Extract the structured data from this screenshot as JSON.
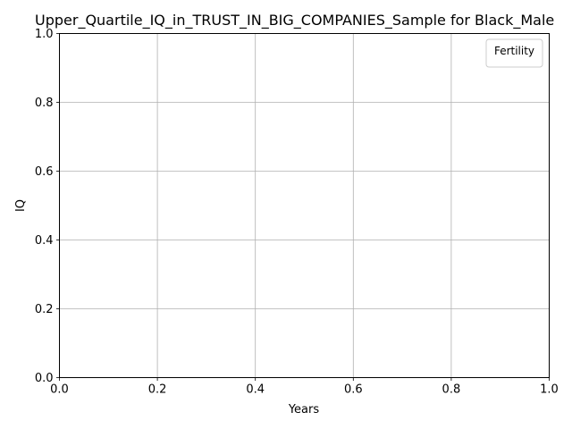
{
  "chart_data": {
    "type": "line",
    "title": "Upper_Quartile_IQ_in_TRUST_IN_BIG_COMPANIES_Sample for Black_Male",
    "xlabel": "Years",
    "ylabel": "IQ",
    "xlim": [
      0.0,
      1.0
    ],
    "ylim": [
      0.0,
      1.0
    ],
    "x_ticks": [
      0.0,
      0.2,
      0.4,
      0.6,
      0.8,
      1.0
    ],
    "y_ticks": [
      0.0,
      0.2,
      0.4,
      0.6,
      0.8,
      1.0
    ],
    "x_tick_labels": [
      "0.0",
      "0.2",
      "0.4",
      "0.6",
      "0.8",
      "1.0"
    ],
    "y_tick_labels": [
      "0.0",
      "0.2",
      "0.4",
      "0.6",
      "0.8",
      "1.0"
    ],
    "grid": true,
    "legend": {
      "title": "Fertility",
      "placement": "top-right",
      "entries": []
    },
    "series": []
  }
}
